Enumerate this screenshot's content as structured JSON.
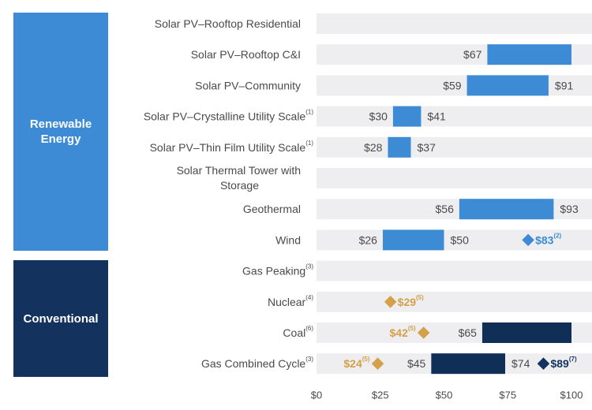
{
  "groups": [
    {
      "label": "Renewable Energy",
      "color": "#3c8bd4"
    },
    {
      "label": "Conventional",
      "color": "#13335e"
    }
  ],
  "colors": {
    "renewable_bar": "#3c8bd4",
    "conventional_bar": "#0f2f57",
    "row_bg": "#eeeef0",
    "diamond_gold": "#d4a04a",
    "diamond_blue": "#3c8bd4",
    "diamond_navy": "#13335e"
  },
  "chart_data": {
    "type": "bar",
    "orientation": "horizontal",
    "xlim": [
      0,
      100
    ],
    "x_ticks": [
      0,
      25,
      50,
      75,
      100
    ],
    "x_tick_labels": [
      "$0",
      "$25",
      "$50",
      "$75",
      "$100"
    ],
    "categories": [
      {
        "label": "Solar PV–Rooftop Residential",
        "sup": "",
        "group": "renewable",
        "low": null,
        "high": null,
        "low_label": "",
        "high_label": ""
      },
      {
        "label": "Solar PV–Rooftop C&I",
        "sup": "",
        "group": "renewable",
        "low": 67,
        "high": 100,
        "low_label": "$67",
        "high_label": ""
      },
      {
        "label": "Solar PV–Community",
        "sup": "",
        "group": "renewable",
        "low": 59,
        "high": 91,
        "low_label": "$59",
        "high_label": "$91"
      },
      {
        "label": "Solar PV–Crystalline Utility Scale",
        "sup": "(1)",
        "group": "renewable",
        "low": 30,
        "high": 41,
        "low_label": "$30",
        "high_label": "$41"
      },
      {
        "label": "Solar PV–Thin Film Utility Scale",
        "sup": "(1)",
        "group": "renewable",
        "low": 28,
        "high": 37,
        "low_label": "$28",
        "high_label": "$37"
      },
      {
        "label": "Solar Thermal Tower with",
        "label2": "Storage",
        "sup": "",
        "group": "renewable",
        "low": null,
        "high": null,
        "low_label": "",
        "high_label": ""
      },
      {
        "label": "Geothermal",
        "sup": "",
        "group": "renewable",
        "low": 56,
        "high": 93,
        "low_label": "$56",
        "high_label": "$93"
      },
      {
        "label": "Wind",
        "sup": "",
        "group": "renewable",
        "low": 26,
        "high": 50,
        "low_label": "$26",
        "high_label": "$50"
      },
      {
        "label": "Gas Peaking",
        "sup": "(3)",
        "group": "conventional",
        "low": null,
        "high": null,
        "low_label": "",
        "high_label": ""
      },
      {
        "label": "Nuclear",
        "sup": "(4)",
        "group": "conventional",
        "low": null,
        "high": null,
        "low_label": "",
        "high_label": ""
      },
      {
        "label": "Coal",
        "sup": "(6)",
        "group": "conventional",
        "low": 65,
        "high": 100,
        "low_label": "$65",
        "high_label": ""
      },
      {
        "label": "Gas Combined Cycle",
        "sup": "(3)",
        "group": "conventional",
        "low": 45,
        "high": 74,
        "low_label": "$45",
        "high_label": "$74"
      }
    ],
    "markers": [
      {
        "row": 7,
        "value": 83,
        "label": "$83",
        "sup": "(2)",
        "color": "blue",
        "label_side": "right"
      },
      {
        "row": 9,
        "value": 29,
        "label": "$29",
        "sup": "(5)",
        "color": "gold",
        "label_side": "right"
      },
      {
        "row": 10,
        "value": 42,
        "label": "$42",
        "sup": "(5)",
        "color": "gold",
        "label_side": "left"
      },
      {
        "row": 11,
        "value": 24,
        "label": "$24",
        "sup": "(5)",
        "color": "gold",
        "label_side": "left"
      },
      {
        "row": 11,
        "value": 89,
        "label": "$89",
        "sup": "(7)",
        "color": "navy",
        "label_side": "right"
      }
    ]
  }
}
